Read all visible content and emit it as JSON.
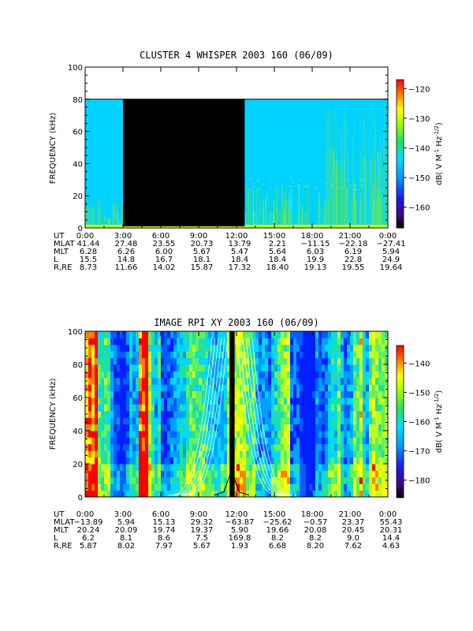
{
  "chart_data": [
    {
      "type": "heatmap",
      "title": "CLUSTER 4 WHISPER 2003 160 (06/09)",
      "ylabel": "FREQUENCY (kHz)",
      "ylim": [
        0,
        100
      ],
      "y_ticks": [
        "0",
        "20",
        "40",
        "60",
        "80",
        "100"
      ],
      "x_ticks_ut_hours": [
        0,
        3,
        6,
        9,
        12,
        15,
        18,
        21,
        24
      ],
      "data_upper_limit_khz": 80,
      "data_gaps_ut_hours": [
        [
          3.0,
          12.65
        ]
      ],
      "colorbar": {
        "label": "dB( V M⁻¹ Hz⁻¹ᐟ²)",
        "label_parts": [
          "dB( V M",
          "-1",
          " Hz",
          "-1/2",
          ")"
        ],
        "range": [
          -167,
          -117
        ],
        "ticks": [
          "-120",
          "-130",
          "-140",
          "-150",
          "-160"
        ]
      },
      "ephemeris": {
        "rows": [
          {
            "name": "UT",
            "values": [
              "0:00",
              "3:00",
              "6:00",
              "9:00",
              "12:00",
              "15:00",
              "18:00",
              "21:00",
              "0:00"
            ]
          },
          {
            "name": "MLAT",
            "values": [
              "41.44",
              "27.48",
              "23.55",
              "20.73",
              "13.79",
              "2.21",
              "−11.15",
              "−22.18",
              "−27.41"
            ]
          },
          {
            "name": "MLT",
            "values": [
              "6.28",
              "6.26",
              "6.00",
              "5.67",
              "5.47",
              "5.64",
              "6.03",
              "6.19",
              "5.94"
            ]
          },
          {
            "name": "L",
            "values": [
              "15.5",
              "14.8",
              "16.7",
              "18.1",
              "18.4",
              "18.4",
              "19.9",
              "22.8",
              "24.9"
            ]
          },
          {
            "name": "R,RE",
            "values": [
              "8.73",
              "11.66",
              "14.02",
              "15.87",
              "17.32",
              "18.40",
              "19.13",
              "19.55",
              "19.64"
            ]
          }
        ]
      }
    },
    {
      "type": "heatmap",
      "title": "IMAGE RPI XY 2003 160 (06/09)",
      "ylabel": "FREQUENCY (kHz)",
      "ylim": [
        0,
        100
      ],
      "y_ticks": [
        "0",
        "20",
        "40",
        "60",
        "80",
        "100"
      ],
      "x_ticks_ut_hours": [
        0,
        3,
        6,
        9,
        12,
        15,
        18,
        21,
        24
      ],
      "colorbar": {
        "label_parts": [
          "dB( V M",
          "-1",
          " Hz",
          "-1/2",
          ")"
        ],
        "range": [
          -186,
          -134
        ],
        "ticks": [
          "-140",
          "-150",
          "-160",
          "-170",
          "-180"
        ]
      },
      "ephemeris": {
        "rows": [
          {
            "name": "UT",
            "values": [
              "0:00",
              "3:00",
              "6:00",
              "9:00",
              "12:00",
              "15:00",
              "18:00",
              "21:00",
              "0:00"
            ]
          },
          {
            "name": "MLAT",
            "values": [
              "−13.89",
              "5.94",
              "15.13",
              "29.32",
              "−63.87",
              "−25.62",
              "−0.57",
              "23.37",
              "55.43"
            ]
          },
          {
            "name": "MLT",
            "values": [
              "20.24",
              "20.09",
              "19.74",
              "19.37",
              "5.90",
              "19.66",
              "20.08",
              "20.45",
              "20.31"
            ]
          },
          {
            "name": "L",
            "values": [
              "6.2",
              "8.1",
              "8.6",
              "7.5",
              "169.8",
              "8.2",
              "8.2",
              "9.0",
              "14.4"
            ]
          },
          {
            "name": "R,RE",
            "values": [
              "5.87",
              "8.02",
              "7.97",
              "5.67",
              "1.93",
              "6.68",
              "8.20",
              "7.62",
              "4.63"
            ]
          }
        ]
      }
    }
  ]
}
